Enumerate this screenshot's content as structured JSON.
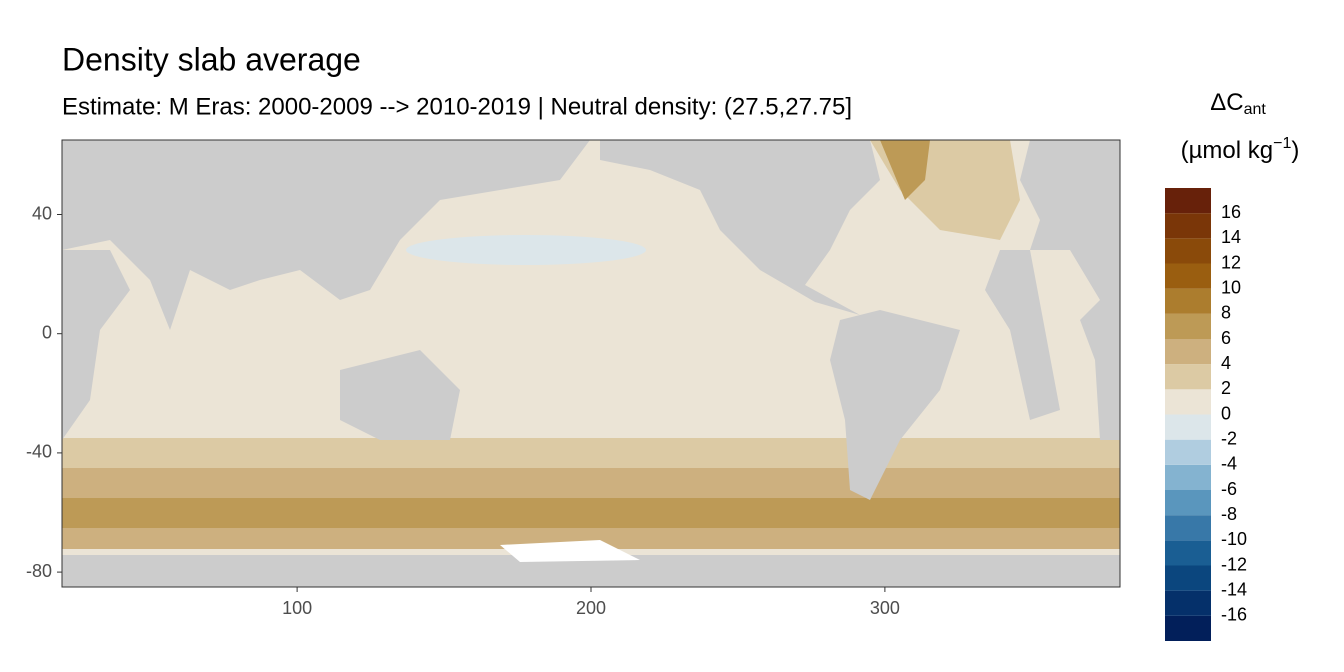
{
  "chart_data": {
    "type": "map",
    "title": "Density slab average",
    "subtitle": "Estimate: M Eras: 2000-2009 --> 2010-2019 | Neutral density: (27.5,27.75]",
    "xlim": [
      20,
      380
    ],
    "ylim": [
      -85,
      65
    ],
    "xticks": [
      100,
      200,
      300
    ],
    "yticks": [
      40,
      0,
      -40,
      -80
    ],
    "legend": {
      "title": "ΔC",
      "title_sub": "ant",
      "units": "(µmol kg",
      "units_sup": "−1",
      "units_end": ")",
      "limits": [
        -18,
        18
      ],
      "breaks": [
        -16,
        -14,
        -12,
        -10,
        -8,
        -6,
        -4,
        -2,
        0,
        2,
        4,
        6,
        8,
        10,
        12,
        14,
        16
      ],
      "colors": [
        "#021f5a",
        "#05306a",
        "#0b467e",
        "#1a5e93",
        "#3878a8",
        "#5a96bd",
        "#84b3d0",
        "#b0cde0",
        "#dce6ea",
        "#ebe4d6",
        "#dccaa4",
        "#cdb07f",
        "#bd9a56",
        "#ac7d2e",
        "#9a5e10",
        "#8a4a0a",
        "#7a3608",
        "#67210a"
      ]
    }
  }
}
